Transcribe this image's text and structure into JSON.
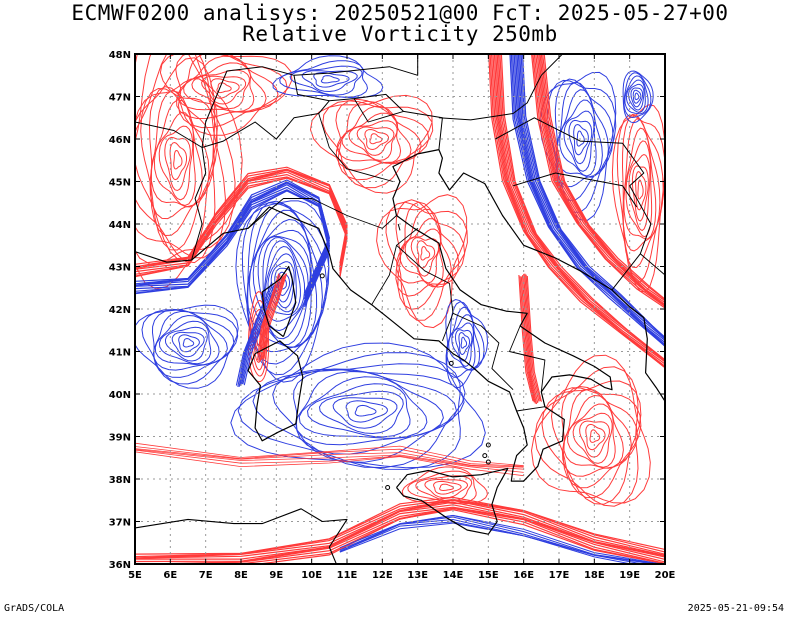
{
  "title": {
    "line1": "ECMWF0200 analisys: 20250521@00 FcT: 2025-05-27+00",
    "line2": "Relative Vorticity 250mb"
  },
  "footer": {
    "left": "GrADS/COLA",
    "right": "2025-05-21-09:54"
  },
  "map": {
    "lon_range": [
      5,
      20
    ],
    "lat_range": [
      36,
      48
    ],
    "lon_ticks": [
      "5E",
      "6E",
      "7E",
      "8E",
      "9E",
      "10E",
      "11E",
      "12E",
      "13E",
      "14E",
      "15E",
      "16E",
      "17E",
      "18E",
      "19E",
      "20E"
    ],
    "lat_ticks": [
      "36N",
      "37N",
      "38N",
      "39N",
      "40N",
      "41N",
      "42N",
      "43N",
      "44N",
      "45N",
      "46N",
      "47N",
      "48N"
    ],
    "grid": true,
    "colors": {
      "positive_vorticity": "#ff3b3b",
      "negative_vorticity": "#2f3fe0",
      "coastline": "#000000",
      "grid": "#9a9a9a"
    }
  }
}
